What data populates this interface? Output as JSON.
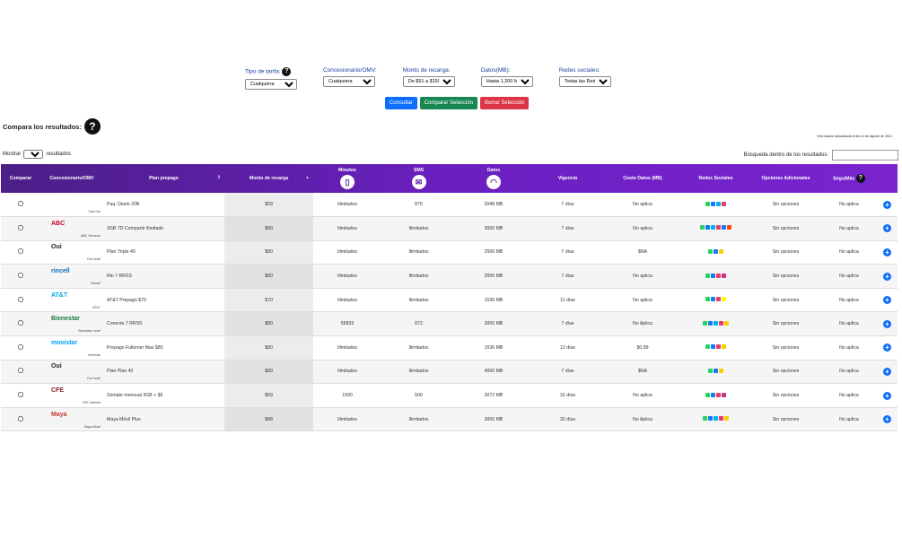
{
  "filters": [
    {
      "label": "Tipo de tarifa:",
      "value": "Cualquiera",
      "help": true
    },
    {
      "label": "Concesionario/OMV:",
      "value": "Cualquiera"
    },
    {
      "label": "Monto de recarga:",
      "value": "De $51 a $150"
    },
    {
      "label": "Datos(MB):",
      "value": "Hasta 1,200 MB"
    },
    {
      "label": "Redes sociales:",
      "value": "Todas las Redes"
    }
  ],
  "buttons": {
    "consultar": "Consultar",
    "comparar": "Comparar Selección",
    "borrar": "Borrar Selección"
  },
  "compare_title": "Compara los resultados:",
  "info_note": "Información actualizada al día 11 de Agosto de 2021.",
  "show": {
    "prefix": "Mostrar",
    "value": "10",
    "suffix": "resultados"
  },
  "search": {
    "label": "Búsqueda dentro de los resultados:"
  },
  "columns": [
    "Comparar",
    "Concesionario/OMV",
    "Plan prepago",
    "Monto de recarga",
    "Minutos",
    "SMS",
    "Datos",
    "Vigencia",
    "Costo Datos (MB)",
    "Redes Sociales",
    "Opciones Adicionales",
    "SeguiMás"
  ],
  "column_icons": {
    "Minutos": "phone-icon",
    "SMS": "envelope-icon",
    "Datos": "wifi-icon"
  },
  "rows": [
    {
      "logo": "",
      "logo_color": "#8bc53f",
      "caption": "Viva Gio",
      "plan": "Paq. Diario 20B",
      "monto": "$59",
      "min": "Ilimitados",
      "sms": "875",
      "datos": "2048 MB",
      "vigencia": "7 días",
      "costo": "No aplica",
      "social": [
        "#25d366",
        "#1877f2",
        "#00aff0",
        "#e4405f"
      ],
      "opciones": "Sin opciones",
      "segui": "No aplica"
    },
    {
      "logo": "ABC",
      "logo_color": "#c2002f",
      "caption": "ABC Services",
      "plan": "3GB 7D Compartir llimitado",
      "monto": "$80",
      "min": "Ilimitados",
      "sms": "Ilimitados",
      "datos": "3000 MB",
      "vigencia": "7 días",
      "costo": "No aplica",
      "social": [
        "#25d366",
        "#1877f2",
        "#00aff0",
        "#e4405f",
        "#1877f2",
        "#ff4500"
      ],
      "opciones": "Sin opciones",
      "segui": "No aplica"
    },
    {
      "logo": "Oui",
      "logo_color": "#222",
      "caption": "Oui móvil",
      "plan": "Plan Triple 40",
      "monto": "$80",
      "min": "Ilimitados",
      "sms": "Ilimitados",
      "datos": "2500 MB",
      "vigencia": "7 días",
      "costo": "$NA",
      "social": [
        "#25d366",
        "#1877f2",
        "#ffcc00"
      ],
      "opciones": "Sin opciones",
      "segui": "No aplica"
    },
    {
      "logo": "rincell",
      "logo_color": "#0a6ebd",
      "caption": "Rincell",
      "plan": "Rin 7 RRSS",
      "monto": "$80",
      "min": "Ilimitados",
      "sms": "Ilimitados",
      "datos": "2000 MB",
      "vigencia": "7 días",
      "costo": "No aplica",
      "social": [
        "#25d366",
        "#1877f2",
        "#e4405f",
        "#c13584"
      ],
      "opciones": "Sin opciones",
      "segui": "No aplica"
    },
    {
      "logo": "AT&T",
      "logo_color": "#00a8e0",
      "caption": "AT&T",
      "plan": "AT&T Prepago $70",
      "monto": "$70",
      "min": "Ilimitados",
      "sms": "Ilimitados",
      "datos": "1536 MB",
      "vigencia": "11 días",
      "costo": "No aplica",
      "social": [
        "#25d366",
        "#1877f2",
        "#e4405f",
        "#fffc00"
      ],
      "opciones": "Sin opciones",
      "segui": "No aplica"
    },
    {
      "logo": "Bienestar",
      "logo_color": "#1a7a3c",
      "caption": "Bienestar móvil",
      "plan": "Conecta 7 RRSS",
      "monto": "$80",
      "min": "55833",
      "sms": "872",
      "datos": "3000 MB",
      "vigencia": "7 días",
      "costo": "No Aplica",
      "social": [
        "#25d366",
        "#1877f2",
        "#00aff0",
        "#e4405f",
        "#ffcc00"
      ],
      "opciones": "Sin opciones",
      "segui": "No aplica"
    },
    {
      "logo": "movistar",
      "logo_color": "#019df4",
      "caption": "Movistar",
      "plan": "Prepago Fullomer Mas $80",
      "monto": "$80",
      "min": "Ilimitados",
      "sms": "Ilimitados",
      "datos": "1536 MB",
      "vigencia": "12 días",
      "costo": "$0.89",
      "social": [
        "#25d366",
        "#1877f2",
        "#e4405f",
        "#ffcc00"
      ],
      "opciones": "Sin opciones",
      "segui": "No aplica"
    },
    {
      "logo": "Oui",
      "logo_color": "#222",
      "caption": "Oui móvil",
      "plan": "Plan Plan 40",
      "monto": "$80",
      "min": "Ilimitados",
      "sms": "Ilimitados",
      "datos": "4000 MB",
      "vigencia": "7 días",
      "costo": "$NA",
      "social": [
        "#25d366",
        "#1877f2",
        "#ffcc00"
      ],
      "opciones": "Sin opciones",
      "segui": "No aplica"
    },
    {
      "logo": "CFE",
      "logo_color": "#8a1c2b",
      "caption": "CFE Internet",
      "plan": "Súmate mensual 3GB + $5",
      "monto": "$59",
      "min": "1500",
      "sms": "500",
      "datos": "3072 MB",
      "vigencia": "31 días",
      "costo": "No aplica",
      "social": [
        "#25d366",
        "#1877f2",
        "#e4405f",
        "#c13584"
      ],
      "opciones": "Sin opciones",
      "segui": "No aplica"
    },
    {
      "logo": "Maya",
      "logo_color": "#c0392b",
      "caption": "Maya Móvil",
      "plan": "Maya Móvil Plus",
      "monto": "$88",
      "min": "Ilimitados",
      "sms": "Ilimitados",
      "datos": "3000 MB",
      "vigencia": "32 días",
      "costo": "No Aplica",
      "social": [
        "#25d366",
        "#1877f2",
        "#00aff0",
        "#e4405f",
        "#ffcc00"
      ],
      "opciones": "Sin opciones",
      "segui": "No aplica"
    }
  ]
}
